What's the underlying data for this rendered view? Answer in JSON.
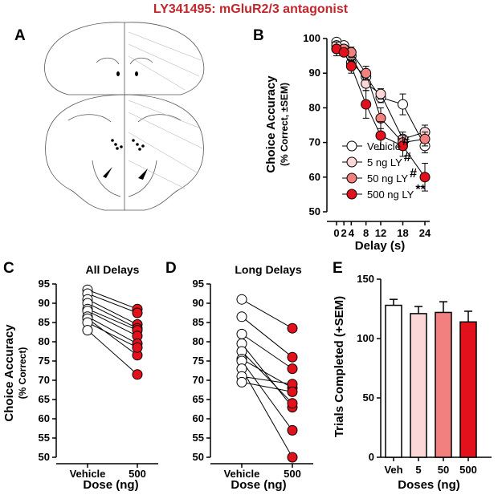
{
  "figure_title": "LY341495: mGluR2/3 antagonist",
  "panel_labels": {
    "a": "A",
    "b": "B",
    "c": "C",
    "d": "D",
    "e": "E"
  },
  "colors": {
    "title": "#c0272d",
    "vehicle": "#ffffff",
    "ly5": "#fbd7d7",
    "ly50": "#f2807e",
    "ly500": "#e3111b"
  },
  "chart_data": [
    {
      "id": "B",
      "type": "line",
      "ylabel": "Choice Accuracy",
      "ylabel_sub": "(% Correct, ±SEM)",
      "xlabel": "Delay (s)",
      "x": [
        0,
        2,
        4,
        8,
        12,
        18,
        24
      ],
      "xticks": [
        "0",
        "2",
        "4",
        "8",
        "12",
        "18",
        "24"
      ],
      "xlim": [
        0,
        24
      ],
      "ylim": [
        50,
        100
      ],
      "yticks": [
        "50",
        "60",
        "70",
        "80",
        "90",
        "100"
      ],
      "series": [
        {
          "name": "Vehicle",
          "marker": "#",
          "color": "#ffffff",
          "values": [
            99,
            98,
            93,
            89,
            83,
            81,
            69
          ],
          "sem": [
            1,
            1,
            1.5,
            2,
            1.5,
            3,
            2
          ]
        },
        {
          "name": "5 ng LY",
          "marker": "#",
          "color": "#fbd7d7",
          "values": [
            98,
            97,
            95,
            87,
            84,
            71,
            73
          ],
          "sem": [
            1,
            1,
            1.5,
            2,
            1.5,
            2,
            2
          ]
        },
        {
          "name": "50 ng LY",
          "marker": "#",
          "color": "#f2807e",
          "values": [
            97,
            97,
            96,
            90,
            77,
            70,
            71
          ],
          "sem": [
            1,
            1,
            1.5,
            2,
            3,
            2,
            2
          ]
        },
        {
          "name": "500 ng LY",
          "marker": "**",
          "color": "#e3111b",
          "values": [
            97,
            96,
            92,
            81,
            72,
            69,
            60
          ],
          "sem": [
            2,
            1,
            2,
            4,
            4,
            3,
            4
          ]
        }
      ],
      "legend_position": "bottom-left"
    },
    {
      "id": "C",
      "type": "scatter",
      "title": "All Delays",
      "ylabel": "Choice Accuracy",
      "ylabel_sub": "(% Correct)",
      "xlabel": "Dose (ng)",
      "categories": [
        "Vehicle",
        "500"
      ],
      "ylim": [
        50,
        95
      ],
      "yticks": [
        "50",
        "55",
        "60",
        "65",
        "70",
        "75",
        "80",
        "85",
        "90",
        "95"
      ],
      "pairs": [
        [
          93.5,
          88.5
        ],
        [
          92.5,
          87.5
        ],
        [
          91,
          84.5
        ],
        [
          90,
          83.5
        ],
        [
          88.5,
          83
        ],
        [
          88,
          81.5
        ],
        [
          86.5,
          79.5
        ],
        [
          86,
          76.5
        ],
        [
          85,
          78.5
        ],
        [
          83,
          71.5
        ]
      ]
    },
    {
      "id": "D",
      "type": "scatter",
      "title": "Long Delays",
      "xlabel": "Dose (ng)",
      "categories": [
        "Vehicle",
        "500"
      ],
      "ylim": [
        50,
        95
      ],
      "yticks": [
        "50",
        "55",
        "60",
        "65",
        "70",
        "75",
        "80",
        "85",
        "90",
        "95"
      ],
      "pairs": [
        [
          91,
          83.5
        ],
        [
          86.5,
          76
        ],
        [
          82,
          73
        ],
        [
          79.5,
          63
        ],
        [
          77.5,
          64
        ],
        [
          75.5,
          68
        ],
        [
          75,
          57
        ],
        [
          73,
          50
        ],
        [
          71,
          69
        ],
        [
          69.5,
          67
        ]
      ]
    },
    {
      "id": "E",
      "type": "bar",
      "ylabel": "Trials Completed (+SEM)",
      "xlabel": "Doses (ng)",
      "categories": [
        "Veh",
        "5",
        "50",
        "500"
      ],
      "values": [
        128,
        121,
        122,
        114
      ],
      "sem": [
        5,
        6,
        9,
        9
      ],
      "ylim": [
        0,
        150
      ],
      "yticks": [
        "0",
        "50",
        "100",
        "150"
      ]
    }
  ]
}
